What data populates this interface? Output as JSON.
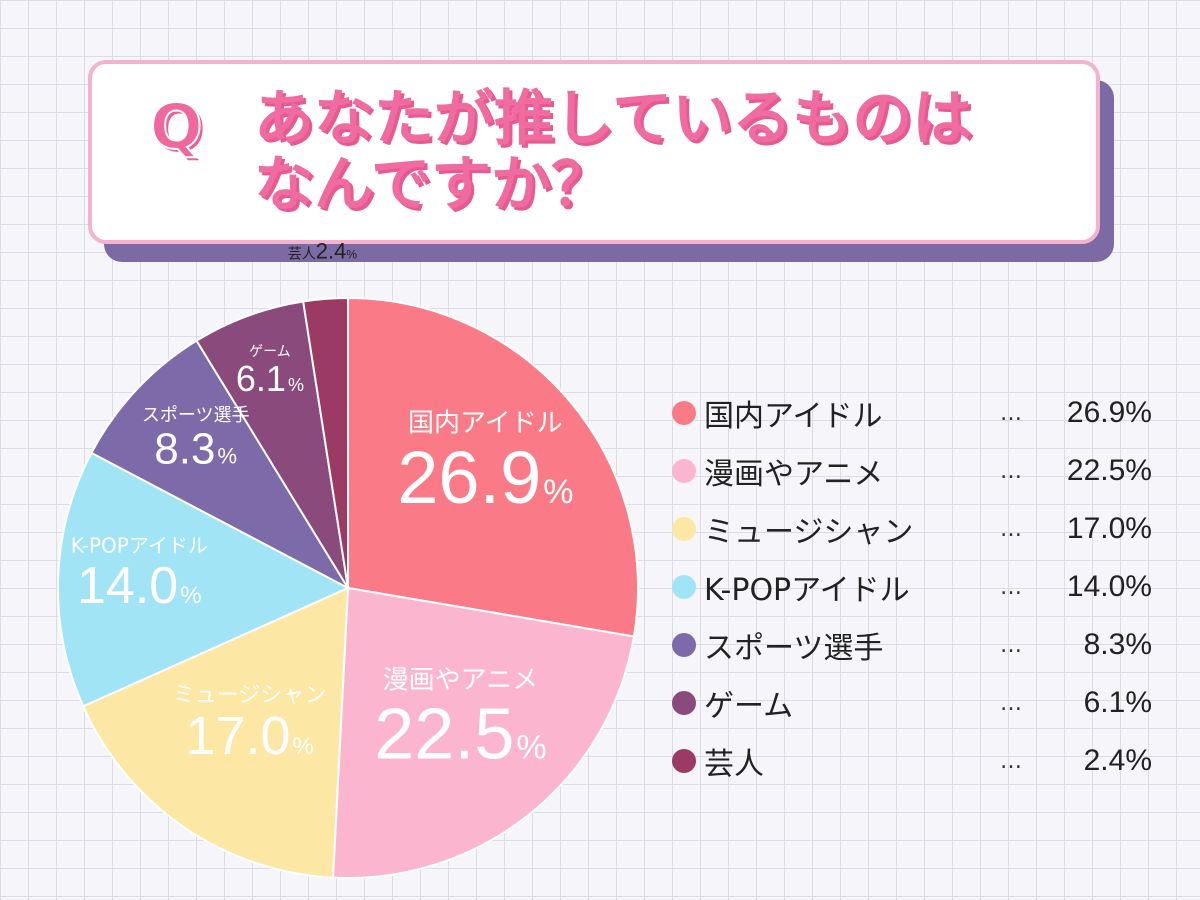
{
  "question": {
    "mark": "Q",
    "line1": "あなたが推しているものは",
    "line2": "なんですか？"
  },
  "legend": {
    "separator": "…",
    "items": [
      {
        "label": "国内アイドル",
        "value": "26.9%"
      },
      {
        "label": "漫画やアニメ",
        "value": "22.5%"
      },
      {
        "label": "ミュージシャン",
        "value": "17.0%"
      },
      {
        "label": "K-POPアイドル",
        "value": "14.0%"
      },
      {
        "label": "スポーツ選手",
        "value": "8.3%"
      },
      {
        "label": "ゲーム",
        "value": "6.1%"
      },
      {
        "label": "芸人",
        "value": "2.4%"
      }
    ]
  },
  "chart_data": {
    "type": "pie",
    "title": "あなたが推しているものはなんですか？",
    "unit": "%",
    "slices": [
      {
        "label": "国内アイドル",
        "value": 26.9,
        "display": "26.9",
        "color": "#fa7b87"
      },
      {
        "label": "漫画やアニメ",
        "value": 22.5,
        "display": "22.5",
        "color": "#fbb5cf"
      },
      {
        "label": "ミュージシャン",
        "value": 17.0,
        "display": "17.0",
        "color": "#fce8a4"
      },
      {
        "label": "K-POPアイドル",
        "value": 14.0,
        "display": "14.0",
        "color": "#a0e4f6"
      },
      {
        "label": "スポーツ選手",
        "value": 8.3,
        "display": "8.3",
        "color": "#7d6aa8"
      },
      {
        "label": "ゲーム",
        "value": 6.1,
        "display": "6.1",
        "color": "#8a4a7c"
      },
      {
        "label": "芸人",
        "value": 2.4,
        "display": "2.4",
        "color": "#9b3a62"
      }
    ]
  }
}
